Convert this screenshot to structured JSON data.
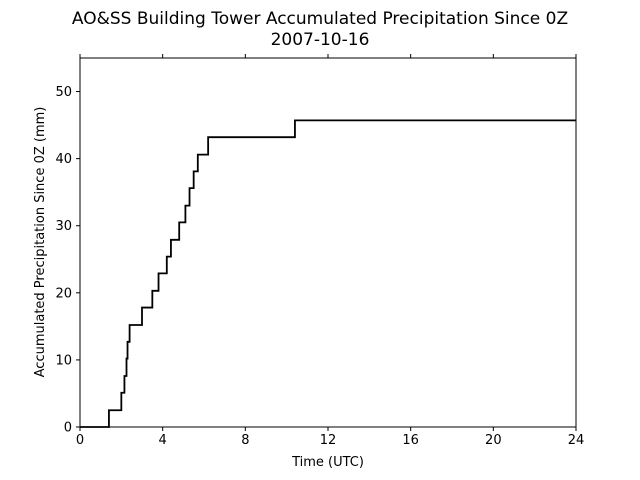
{
  "chart_data": {
    "type": "line",
    "title": "AO&SS Building Tower Accumulated Precipitation Since 0Z",
    "subtitle": "2007-10-16",
    "xlabel": "Time (UTC)",
    "ylabel": "Accumulated Precipitation Since 0Z (mm)",
    "xlim": [
      0,
      24
    ],
    "ylim": [
      0,
      55
    ],
    "xticks": [
      0,
      4,
      8,
      12,
      16,
      20,
      24
    ],
    "yticks": [
      0,
      10,
      20,
      30,
      40,
      50
    ],
    "grid": false,
    "line_color": "#000000",
    "step": true,
    "series": [
      {
        "x": [
          0.0,
          1.4,
          2.0,
          2.15,
          2.25,
          2.3,
          2.4,
          2.5,
          3.0,
          3.5,
          3.8,
          4.2,
          4.4,
          4.8,
          5.1,
          5.3,
          5.5,
          5.7,
          6.2,
          10.4,
          24.0
        ],
        "y": [
          0.0,
          2.5,
          5.1,
          7.6,
          10.2,
          12.7,
          15.2,
          15.2,
          17.8,
          20.3,
          22.9,
          25.4,
          27.9,
          30.5,
          33.0,
          35.6,
          38.1,
          40.6,
          43.2,
          45.7,
          45.7
        ]
      }
    ]
  }
}
